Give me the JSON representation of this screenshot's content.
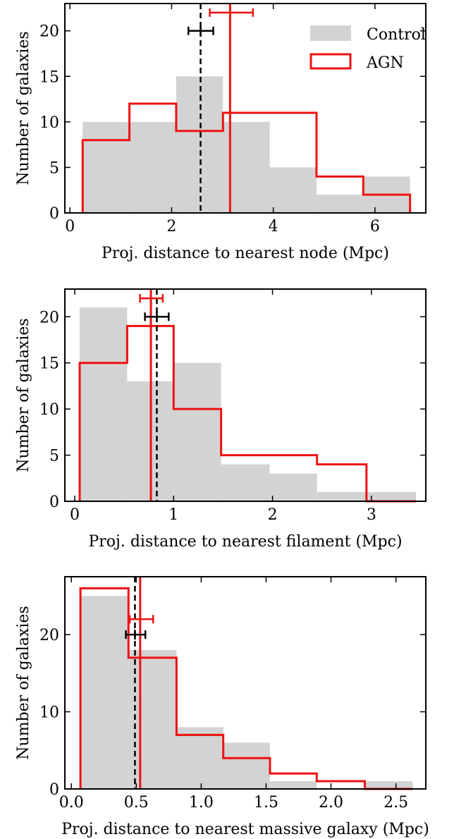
{
  "legend": {
    "control_label": "Control",
    "agn_label": "AGN",
    "placement": "upper-right (top panel only)"
  },
  "colors": {
    "control_fill": "#d3d3d3",
    "agn_line": "#ee1111",
    "median_control": "#000000",
    "median_agn": "#ee1111"
  },
  "chart_data": [
    {
      "type": "histogram",
      "xlabel": "Proj. distance to nearest node (Mpc)",
      "ylabel": "Number of galaxies",
      "xlim": [
        -0.1,
        7.0
      ],
      "ylim": [
        0,
        23
      ],
      "xticks": [
        0,
        2,
        4,
        6
      ],
      "yticks": [
        0,
        5,
        10,
        15,
        20
      ],
      "bin_edges": [
        0.25,
        1.17,
        2.09,
        3.01,
        3.93,
        4.85,
        5.77,
        6.69
      ],
      "series": [
        {
          "name": "Control",
          "style": "filled",
          "counts": [
            10,
            10,
            15,
            10,
            5,
            2,
            4
          ]
        },
        {
          "name": "AGN",
          "style": "step",
          "counts": [
            8,
            12,
            9,
            11,
            11,
            4,
            2
          ]
        }
      ],
      "medians": {
        "control": {
          "value": 2.57,
          "err_low": 2.33,
          "err_high": 2.82,
          "marker_y": 20
        },
        "agn": {
          "value": 3.15,
          "err_low": 2.75,
          "err_high": 3.6,
          "marker_y": 22
        }
      }
    },
    {
      "type": "histogram",
      "xlabel": "Proj. distance to nearest filament (Mpc)",
      "ylabel": "Number of galaxies",
      "xlim": [
        -0.1,
        3.55
      ],
      "ylim": [
        0,
        23
      ],
      "xticks": [
        0,
        1,
        2,
        3
      ],
      "yticks": [
        0,
        5,
        10,
        15,
        20
      ],
      "bin_edges": [
        0.05,
        0.53,
        1.0,
        1.48,
        1.97,
        2.45,
        2.95,
        3.45
      ],
      "series": [
        {
          "name": "Control",
          "style": "filled",
          "counts": [
            21,
            13,
            15,
            4,
            3,
            1,
            1
          ]
        },
        {
          "name": "AGN",
          "style": "step",
          "counts": [
            15,
            19,
            10,
            5,
            5,
            4,
            0
          ]
        }
      ],
      "medians": {
        "control": {
          "value": 0.83,
          "err_low": 0.71,
          "err_high": 0.95,
          "marker_y": 20
        },
        "agn": {
          "value": 0.77,
          "err_low": 0.66,
          "err_high": 0.89,
          "marker_y": 22
        }
      }
    },
    {
      "type": "histogram",
      "xlabel": "Proj. distance to nearest massive galaxy (Mpc)",
      "ylabel": "Number of galaxies",
      "xlim": [
        -0.05,
        2.73
      ],
      "ylim": [
        0,
        27.5
      ],
      "xticks": [
        0.0,
        0.5,
        1.0,
        1.5,
        2.0,
        2.5
      ],
      "xtick_labels": [
        "0.0",
        "0.5",
        "1.0",
        "1.5",
        "2.0",
        "2.5"
      ],
      "yticks": [
        0,
        10,
        20
      ],
      "bin_edges": [
        0.07,
        0.44,
        0.81,
        1.17,
        1.53,
        1.89,
        2.26,
        2.63
      ],
      "series": [
        {
          "name": "Control",
          "style": "filled",
          "counts": [
            25,
            18,
            8,
            6,
            1,
            0,
            1
          ]
        },
        {
          "name": "AGN",
          "style": "step",
          "counts": [
            26,
            17,
            7,
            4,
            2,
            1,
            0
          ]
        }
      ],
      "medians": {
        "control": {
          "value": 0.49,
          "err_low": 0.42,
          "err_high": 0.57,
          "marker_y": 20
        },
        "agn": {
          "value": 0.53,
          "err_low": 0.45,
          "err_high": 0.63,
          "marker_y": 22
        }
      }
    }
  ]
}
